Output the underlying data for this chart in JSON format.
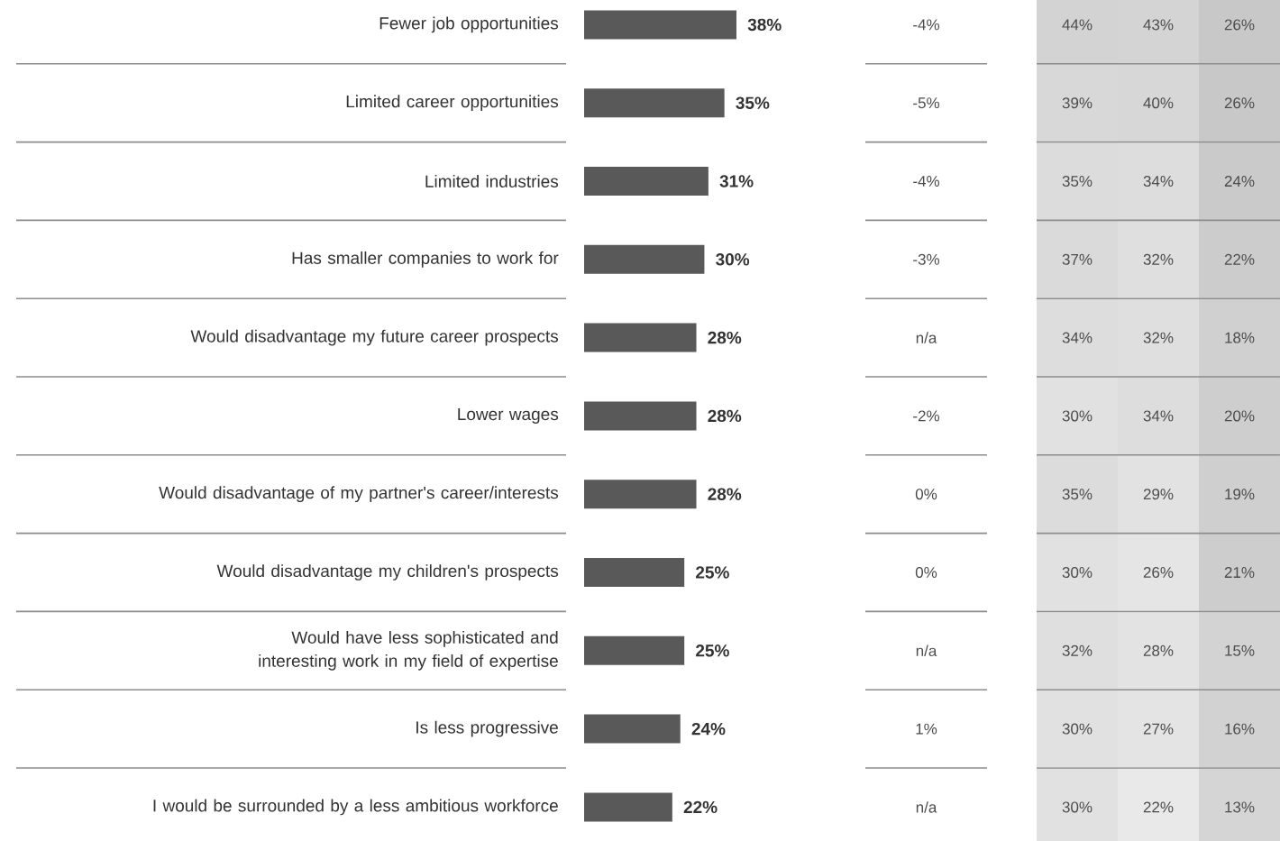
{
  "chart_data": [
    {
      "type": "bar",
      "orientation": "horizontal",
      "color": "#595959",
      "categories": [
        "Fewer job opportunities",
        "Limited career opportunities",
        "Limited industries",
        "Has smaller companies to work for",
        "Would disadvantage my future career prospects",
        "Lower wages",
        "Would disadvantage of my partner's career/interests",
        "Would disadvantage my children's prospects",
        "Would have less sophisticated and interesting work in my field of expertise",
        "Is less progressive",
        "I would be surrounded by a less ambitious workforce"
      ],
      "values": [
        38,
        35,
        31,
        30,
        28,
        28,
        28,
        25,
        25,
        24,
        22
      ],
      "value_labels": [
        "38%",
        "35%",
        "31%",
        "30%",
        "28%",
        "28%",
        "28%",
        "25%",
        "25%",
        "24%",
        "22%"
      ]
    },
    {
      "type": "other",
      "annotations": [
        "-4%",
        "-5%",
        "-4%",
        "-3%",
        "n/a",
        "-2%",
        "0%",
        "0%",
        "n/a",
        "1%",
        "n/a"
      ]
    },
    {
      "type": "heatmap",
      "categories": [
        null,
        null,
        null
      ],
      "y_categories": [
        null,
        null,
        null,
        null,
        null,
        null,
        null,
        null,
        null,
        null,
        null
      ],
      "cells": [
        [
          44,
          43,
          26
        ],
        [
          39,
          40,
          26
        ],
        [
          35,
          34,
          24
        ],
        [
          37,
          32,
          22
        ],
        [
          34,
          32,
          18
        ],
        [
          30,
          34,
          20
        ],
        [
          35,
          29,
          19
        ],
        [
          30,
          26,
          21
        ],
        [
          32,
          28,
          15
        ],
        [
          30,
          27,
          16
        ],
        [
          30,
          22,
          13
        ]
      ],
      "cell_labels": [
        [
          "44%",
          "43%",
          "26%"
        ],
        [
          "39%",
          "40%",
          "26%"
        ],
        [
          "35%",
          "34%",
          "24%"
        ],
        [
          "37%",
          "32%",
          "22%"
        ],
        [
          "34%",
          "32%",
          "18%"
        ],
        [
          "30%",
          "34%",
          "20%"
        ],
        [
          "35%",
          "29%",
          "19%"
        ],
        [
          "30%",
          "26%",
          "21%"
        ],
        [
          "32%",
          "28%",
          "15%"
        ],
        [
          "30%",
          "27%",
          "16%"
        ],
        [
          "30%",
          "22%",
          "13%"
        ]
      ]
    }
  ]
}
